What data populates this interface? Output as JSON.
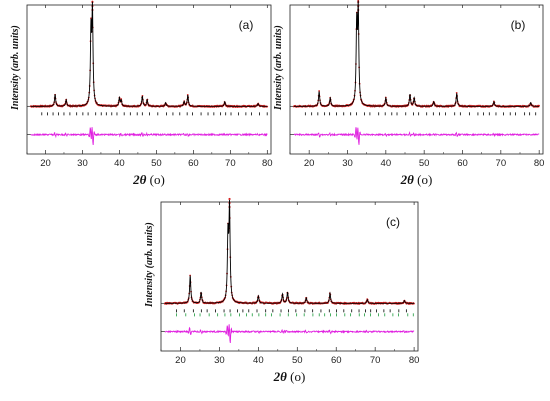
{
  "chart_data": [
    {
      "type": "line",
      "panel_label": "(a)",
      "xlabel": "2θ",
      "xlabel_unit": "(o)",
      "ylabel": "Intensity (arb. units)",
      "xlim": [
        15,
        81
      ],
      "xticks": [
        20,
        30,
        40,
        50,
        60,
        70,
        80
      ],
      "series": [
        {
          "role": "observed",
          "color": "#d42020",
          "marker": "dot"
        },
        {
          "role": "calculated",
          "color": "#000000"
        },
        {
          "role": "bragg_positions",
          "color": "#000000"
        },
        {
          "role": "difference",
          "color": "#e020e0"
        }
      ],
      "peaks": [
        {
          "x": 22.6,
          "h": 0.13
        },
        {
          "x": 25.6,
          "h": 0.07
        },
        {
          "x": 32.3,
          "h": 0.78
        },
        {
          "x": 32.7,
          "h": 1.0
        },
        {
          "x": 40.0,
          "h": 0.09
        },
        {
          "x": 40.5,
          "h": 0.06
        },
        {
          "x": 46.2,
          "h": 0.11
        },
        {
          "x": 47.5,
          "h": 0.07
        },
        {
          "x": 52.5,
          "h": 0.04
        },
        {
          "x": 57.5,
          "h": 0.05
        },
        {
          "x": 58.5,
          "h": 0.12
        },
        {
          "x": 68.5,
          "h": 0.05
        },
        {
          "x": 77.5,
          "h": 0.03
        }
      ],
      "bragg_rows": 1,
      "grid": false
    },
    {
      "type": "line",
      "panel_label": "(b)",
      "xlabel": "2θ",
      "xlabel_unit": "(o)",
      "ylabel": "Intensity (arb. units)",
      "xlim": [
        15,
        81
      ],
      "xticks": [
        20,
        30,
        40,
        50,
        60,
        70,
        80
      ],
      "series": [
        {
          "role": "observed",
          "color": "#d42020",
          "marker": "dot"
        },
        {
          "role": "calculated",
          "color": "#000000"
        },
        {
          "role": "bragg_positions",
          "color": "#000000"
        },
        {
          "role": "difference",
          "color": "#e020e0"
        }
      ],
      "peaks": [
        {
          "x": 22.6,
          "h": 0.16
        },
        {
          "x": 25.5,
          "h": 0.09
        },
        {
          "x": 32.4,
          "h": 0.85
        },
        {
          "x": 32.8,
          "h": 1.0
        },
        {
          "x": 40.0,
          "h": 0.09
        },
        {
          "x": 46.3,
          "h": 0.13
        },
        {
          "x": 47.4,
          "h": 0.09
        },
        {
          "x": 52.5,
          "h": 0.05
        },
        {
          "x": 58.5,
          "h": 0.14
        },
        {
          "x": 68.2,
          "h": 0.05
        },
        {
          "x": 77.8,
          "h": 0.04
        }
      ],
      "bragg_rows": 1,
      "grid": false
    },
    {
      "type": "line",
      "panel_label": "(c)",
      "xlabel": "2θ",
      "xlabel_unit": "(o)",
      "ylabel": "Intensity (arb. units)",
      "xlim": [
        15,
        81
      ],
      "xticks": [
        20,
        30,
        40,
        50,
        60,
        70,
        80
      ],
      "series": [
        {
          "role": "observed",
          "color": "#d42020",
          "marker": "dot"
        },
        {
          "role": "calculated",
          "color": "#000000"
        },
        {
          "role": "bragg_positions",
          "color": "#000000"
        },
        {
          "role": "bragg_positions",
          "color": "#1a9a3a"
        },
        {
          "role": "difference",
          "color": "#e020e0"
        }
      ],
      "peaks": [
        {
          "x": 22.5,
          "h": 0.3
        },
        {
          "x": 25.3,
          "h": 0.12
        },
        {
          "x": 32.2,
          "h": 0.7
        },
        {
          "x": 32.6,
          "h": 1.0
        },
        {
          "x": 40.0,
          "h": 0.08
        },
        {
          "x": 46.2,
          "h": 0.1
        },
        {
          "x": 47.5,
          "h": 0.12
        },
        {
          "x": 52.3,
          "h": 0.06
        },
        {
          "x": 58.4,
          "h": 0.11
        },
        {
          "x": 68.0,
          "h": 0.04
        },
        {
          "x": 77.5,
          "h": 0.03
        }
      ],
      "bragg_rows": 2,
      "grid": false
    }
  ]
}
